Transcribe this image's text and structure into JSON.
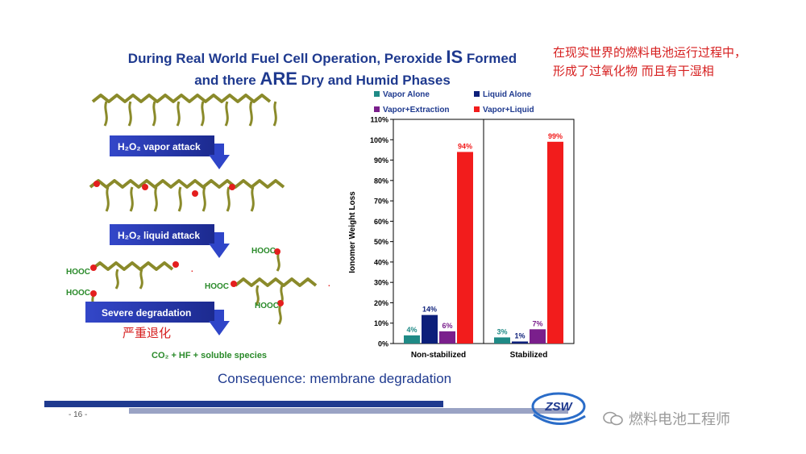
{
  "slide": {
    "title_part1": "During Real World Fuel Cell Operation, Peroxide ",
    "title_is": "IS",
    "title_part2": " Formed",
    "title_line2_a": "and there ",
    "title_are": "ARE",
    "title_line2_b": " Dry and Humid Phases",
    "cn_line1": "在现实世界的燃料电池运行过程中，",
    "cn_line2": "形成了过氧化物 而且有干湿相",
    "consequence": "Consequence: membrane degradation",
    "page_number": "- 16 -",
    "logo_text": "ZSW",
    "watermark": "燃料电池工程师"
  },
  "diagram": {
    "arrow1": "H₂O₂ vapor attack",
    "arrow2": "H₂O₂ liquid attack",
    "arrow3": "Severe degradation",
    "arrow3_cn": "严重退化",
    "hooc": "HOOC",
    "products": "CO₂ + HF + soluble species",
    "dot": "·"
  },
  "colors": {
    "title_blue": "#1f3a8f",
    "chain_olive": "#8a8a2a",
    "attack_red": "#e41e1e",
    "arrow_blue": "#2f45c8",
    "vapor_alone": "#1f8a86",
    "liquid_alone": "#0c1f7a",
    "vapor_extraction": "#7a1f8c",
    "vapor_liquid": "#f21c1c"
  },
  "chart_data": {
    "type": "bar",
    "categories": [
      "Non-stabilized",
      "Stabilized"
    ],
    "series": [
      {
        "name": "Vapor Alone",
        "values": [
          4,
          3
        ],
        "color": "#1f8a86"
      },
      {
        "name": "Liquid Alone",
        "values": [
          14,
          1
        ],
        "color": "#0c1f7a"
      },
      {
        "name": "Vapor+Extraction",
        "values": [
          6,
          7
        ],
        "color": "#7a1f8c"
      },
      {
        "name": "Vapor+Liquid",
        "values": [
          94,
          99
        ],
        "color": "#f21c1c"
      }
    ],
    "data_labels": [
      [
        "4%",
        "14%",
        "6%",
        "94%"
      ],
      [
        "3%",
        "1%",
        "7%",
        "99%"
      ]
    ],
    "ylabel": "Ionomer Weight Loss",
    "ylim": [
      0,
      110
    ],
    "yticks": [
      "0%",
      "10%",
      "20%",
      "30%",
      "40%",
      "50%",
      "60%",
      "70%",
      "80%",
      "90%",
      "100%",
      "110%"
    ],
    "legend_placement": "top",
    "grid": false
  }
}
